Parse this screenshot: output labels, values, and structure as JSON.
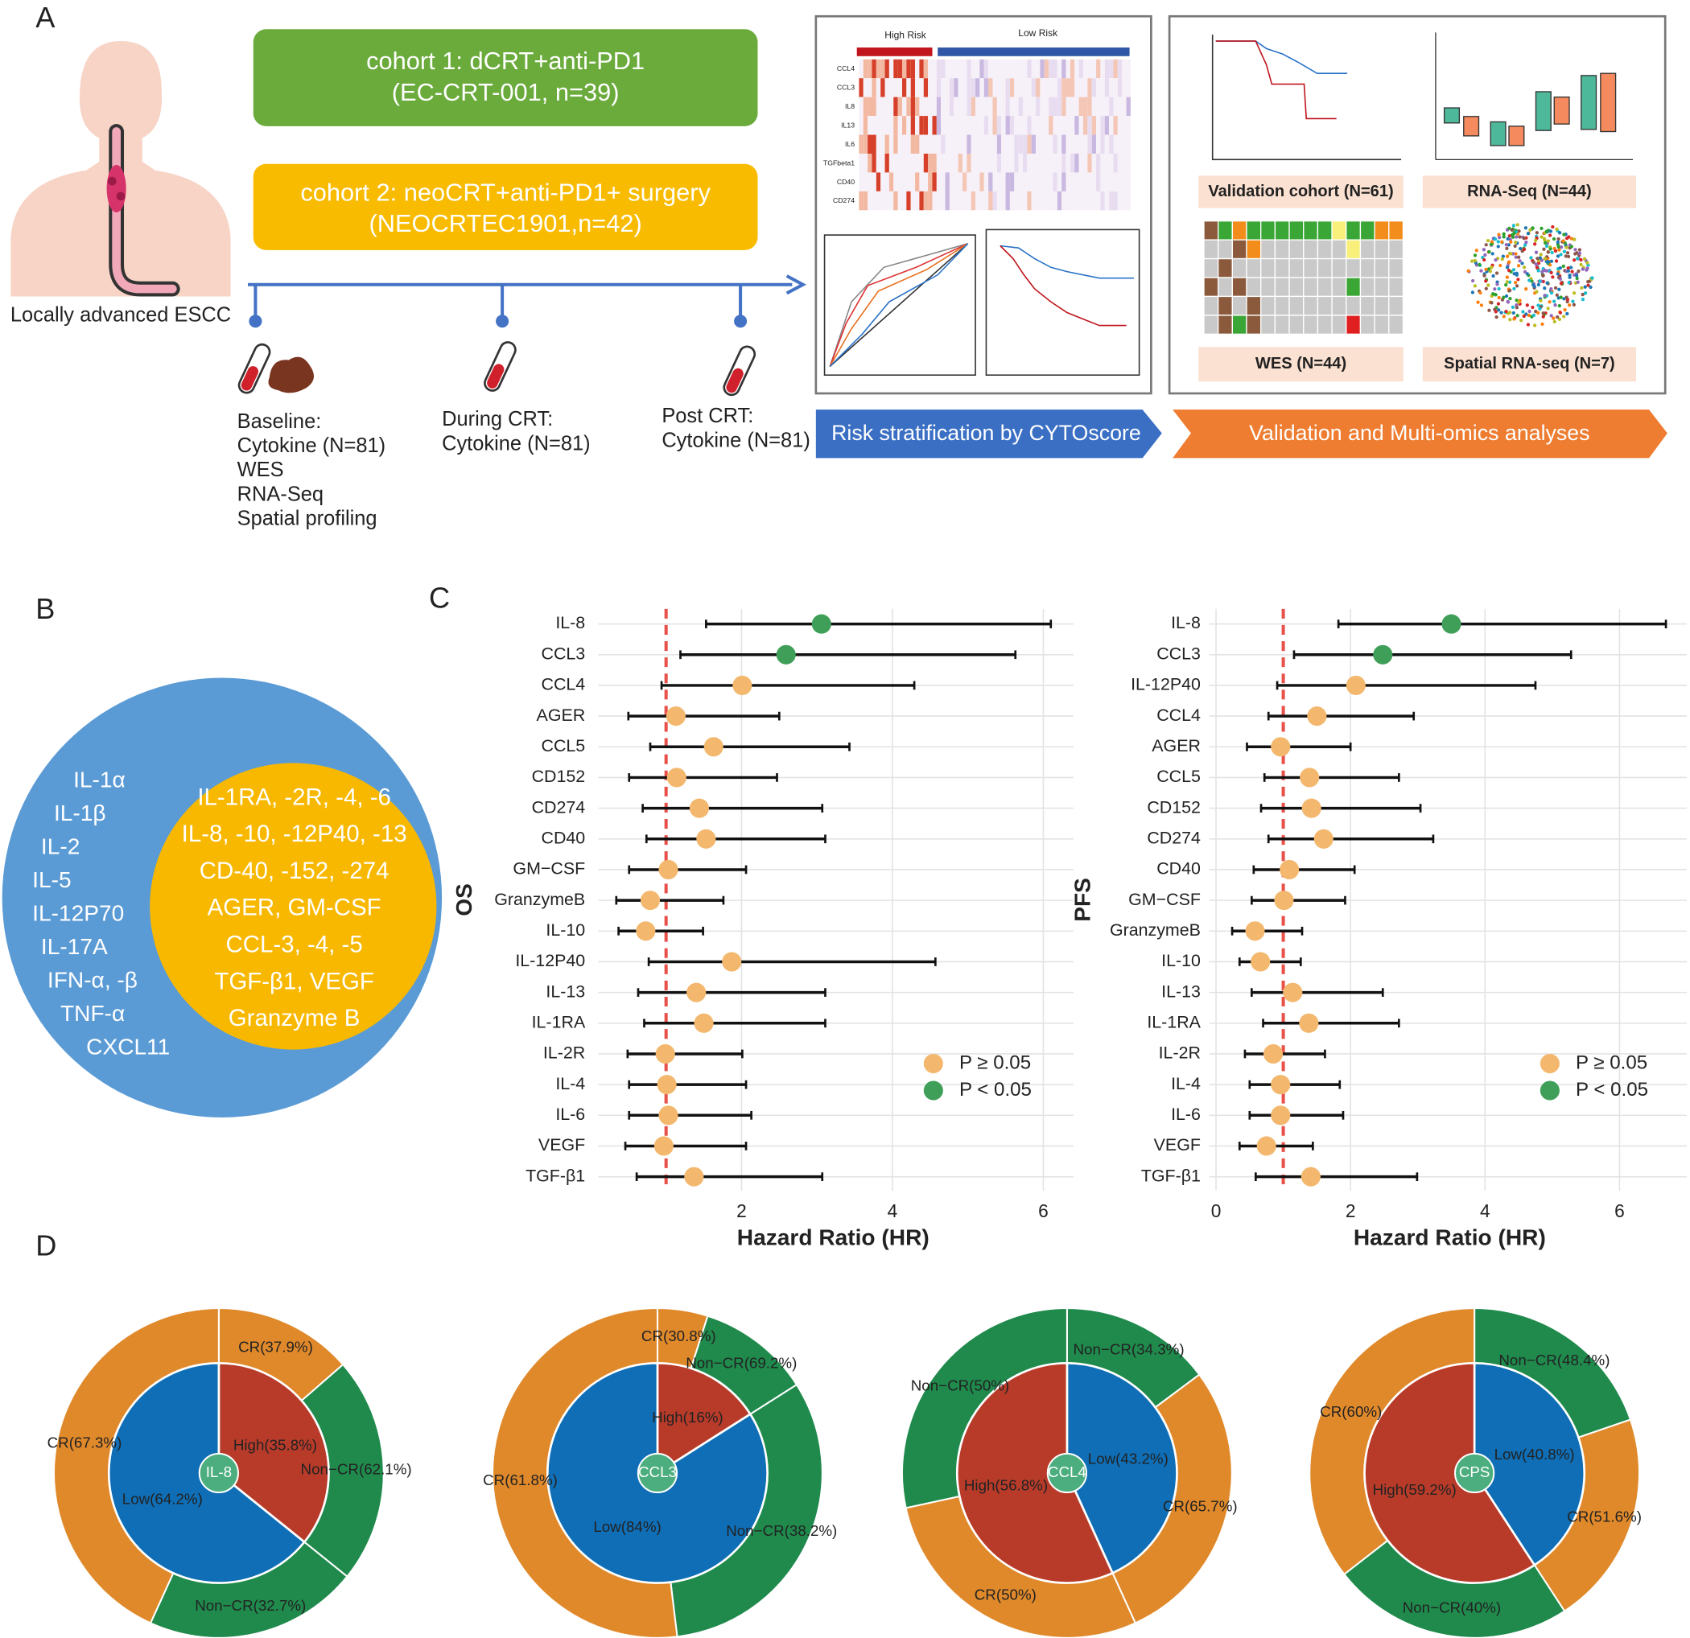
{
  "panel_a": {
    "label": "A",
    "patient": "Locally advanced ESCC",
    "cohort1": [
      "cohort 1: dCRT+anti-PD1",
      "(EC-CRT-001, n=39)"
    ],
    "cohort2": [
      "cohort 2: neoCRT+anti-PD1+ surgery",
      "(NEOCRTEC1901,n=42)"
    ],
    "timepoints": [
      [
        "Baseline:",
        "Cytokine (N=81)",
        "WES",
        "RNA-Seq",
        "Spatial profiling"
      ],
      [
        "During CRT:",
        "Cytokine (N=81)"
      ],
      [
        "Post CRT:",
        "Cytokine (N=81)"
      ]
    ],
    "heatmap": {
      "groups": [
        "High Risk",
        "Low Risk"
      ],
      "rows": [
        "CCL4",
        "CCL3",
        "IL8",
        "IL13",
        "IL6",
        "TGFbeta1",
        "CD40",
        "CD274"
      ]
    },
    "risk_banner": "Risk stratification by CYTOscore",
    "validation": [
      "Validation cohort (N=61)",
      "RNA-Seq (N=44)",
      "WES (N=44)",
      "Spatial RNA-seq (N=7)"
    ],
    "validation_banner": "Validation and Multi-omics analyses"
  },
  "panel_b": {
    "label": "B",
    "outer": [
      "IL-1α",
      "IL-1β",
      "IL-2",
      "IL-5",
      "IL-12P70",
      "IL-17A",
      "IFN-α, -β",
      "TNF-α",
      "CXCL11"
    ],
    "inner": [
      "IL-1RA, -2R, -4, -6",
      "IL-8, -10, -12P40, -13",
      "CD-40, -152, -274",
      "AGER, GM-CSF",
      "CCL-3, -4, -5",
      "TGF-β1, VEGF",
      "Granzyme B"
    ]
  },
  "chart_data": [
    {
      "type": "forest",
      "panel": "C",
      "ylabel": "OS",
      "xlabel": "Hazard Ratio (HR)",
      "xlim": [
        0.1,
        6.4
      ],
      "xticks": [
        2,
        4,
        6
      ],
      "ref_line": 1,
      "grid": true,
      "categories": [
        "IL-8",
        "CCL3",
        "CCL4",
        "AGER",
        "CCL5",
        "CD152",
        "CD274",
        "CD40",
        "GM−CSF",
        "GranzymeB",
        "IL-10",
        "IL-12P40",
        "IL-13",
        "IL-1RA",
        "IL-2R",
        "IL-4",
        "IL-6",
        "VEGF",
        "TGF-β1"
      ],
      "values": [
        3.06,
        2.59,
        2.01,
        1.13,
        1.63,
        1.14,
        1.44,
        1.53,
        1.03,
        0.79,
        0.73,
        1.87,
        1.4,
        1.5,
        0.99,
        1.01,
        1.03,
        0.97,
        1.37
      ],
      "lower": [
        1.53,
        1.19,
        0.94,
        0.5,
        0.79,
        0.51,
        0.69,
        0.74,
        0.51,
        0.34,
        0.37,
        0.77,
        0.63,
        0.71,
        0.49,
        0.51,
        0.51,
        0.46,
        0.61
      ],
      "upper": [
        6.1,
        5.63,
        4.29,
        2.5,
        3.43,
        2.47,
        3.07,
        3.11,
        2.06,
        1.76,
        1.49,
        4.57,
        3.11,
        3.11,
        2.01,
        2.06,
        2.13,
        2.06,
        3.07
      ],
      "groups": [
        1,
        1,
        0,
        0,
        0,
        0,
        0,
        0,
        0,
        0,
        0,
        0,
        0,
        0,
        0,
        0,
        0,
        0,
        0
      ],
      "legend": [
        {
          "label": "P ≥ 0.05",
          "color": "#f3b86e"
        },
        {
          "label": "P < 0.05",
          "color": "#3f9f58"
        }
      ],
      "ref_color": "#e8504a"
    },
    {
      "type": "forest",
      "ylabel": "PFS",
      "xlabel": "Hazard Ratio (HR)",
      "xlim": [
        -0.1,
        7.0
      ],
      "xticks": [
        0,
        2,
        4,
        6
      ],
      "ref_line": 1,
      "grid": true,
      "categories": [
        "IL-8",
        "CCL3",
        "IL-12P40",
        "CCL4",
        "AGER",
        "CCL5",
        "CD152",
        "CD274",
        "CD40",
        "GM−CSF",
        "GranzymeB",
        "IL-10",
        "IL-13",
        "IL-1RA",
        "IL-2R",
        "IL-4",
        "IL-6",
        "VEGF",
        "TGF-β1"
      ],
      "values": [
        3.5,
        2.48,
        2.08,
        1.5,
        0.96,
        1.39,
        1.42,
        1.6,
        1.09,
        1.01,
        0.58,
        0.66,
        1.14,
        1.38,
        0.85,
        0.96,
        0.96,
        0.75,
        1.41
      ],
      "lower": [
        1.82,
        1.16,
        0.91,
        0.78,
        0.46,
        0.72,
        0.67,
        0.78,
        0.56,
        0.53,
        0.24,
        0.35,
        0.53,
        0.7,
        0.43,
        0.5,
        0.5,
        0.35,
        0.59
      ],
      "upper": [
        6.69,
        5.28,
        4.75,
        2.94,
        2.0,
        2.72,
        3.04,
        3.23,
        2.06,
        1.92,
        1.28,
        1.26,
        2.48,
        2.72,
        1.62,
        1.84,
        1.89,
        1.44,
        2.99
      ],
      "groups": [
        1,
        1,
        0,
        0,
        0,
        0,
        0,
        0,
        0,
        0,
        0,
        0,
        0,
        0,
        0,
        0,
        0,
        0,
        0
      ],
      "legend": [
        {
          "label": "P ≥ 0.05",
          "color": "#f3b86e"
        },
        {
          "label": "P < 0.05",
          "color": "#3f9f58"
        }
      ],
      "ref_color": "#e8504a"
    },
    {
      "type": "donut",
      "panel": "D",
      "center_label": "IL-8",
      "inner": {
        "values": [
          35.8,
          64.2
        ],
        "value_labels": [
          "High(35.8%)",
          "Low(64.2%)"
        ],
        "colors": [
          "#b83b2a",
          "#0f6eb6"
        ]
      },
      "outer": [
        {
          "values": [
            37.9,
            62.1
          ],
          "value_labels": [
            "CR(37.9%)",
            "Non−CR(62.1%)"
          ],
          "colors": [
            "#e0892b",
            "#1f8a4c"
          ]
        },
        {
          "values": [
            32.7,
            67.3
          ],
          "value_labels": [
            "Non−CR(32.7%)",
            "CR(67.3%)"
          ],
          "colors": [
            "#1f8a4c",
            "#e0892b"
          ]
        }
      ]
    },
    {
      "type": "donut",
      "center_label": "CCL3",
      "inner": {
        "values": [
          16,
          84
        ],
        "value_labels": [
          "High(16%)",
          "Low(84%)"
        ],
        "colors": [
          "#b83b2a",
          "#0f6eb6"
        ]
      },
      "outer": [
        {
          "values": [
            30.8,
            69.2
          ],
          "value_labels": [
            "CR(30.8%)",
            "Non−CR(69.2%)"
          ],
          "colors": [
            "#e0892b",
            "#1f8a4c"
          ]
        },
        {
          "values": [
            38.2,
            61.8
          ],
          "value_labels": [
            "Non−CR(38.2%)",
            "CR(61.8%)"
          ],
          "colors": [
            "#1f8a4c",
            "#e0892b"
          ]
        }
      ]
    },
    {
      "type": "donut",
      "center_label": "CCL4",
      "inner": {
        "values": [
          43.2,
          56.8
        ],
        "value_labels": [
          "Low(43.2%)",
          "High(56.8%)"
        ],
        "colors": [
          "#0f6eb6",
          "#b83b2a"
        ]
      },
      "outer": [
        {
          "values": [
            34.3,
            65.7
          ],
          "value_labels": [
            "Non−CR(34.3%)",
            "CR(65.7%)"
          ],
          "colors": [
            "#1f8a4c",
            "#e0892b"
          ]
        },
        {
          "values": [
            50,
            50
          ],
          "value_labels": [
            "CR(50%)",
            "Non−CR(50%)"
          ],
          "colors": [
            "#e0892b",
            "#1f8a4c"
          ]
        }
      ]
    },
    {
      "type": "donut",
      "center_label": "CPS",
      "inner": {
        "values": [
          40.8,
          59.2
        ],
        "value_labels": [
          "Low(40.8%)",
          "High(59.2%)"
        ],
        "colors": [
          "#0f6eb6",
          "#b83b2a"
        ]
      },
      "outer": [
        {
          "values": [
            48.4,
            51.6
          ],
          "value_labels": [
            "Non−CR(48.4%)",
            "CR(51.6%)"
          ],
          "colors": [
            "#1f8a4c",
            "#e0892b"
          ]
        },
        {
          "values": [
            40,
            60
          ],
          "value_labels": [
            "Non−CR(40%)",
            "CR(60%)"
          ],
          "colors": [
            "#1f8a4c",
            "#e0892b"
          ]
        }
      ]
    }
  ]
}
